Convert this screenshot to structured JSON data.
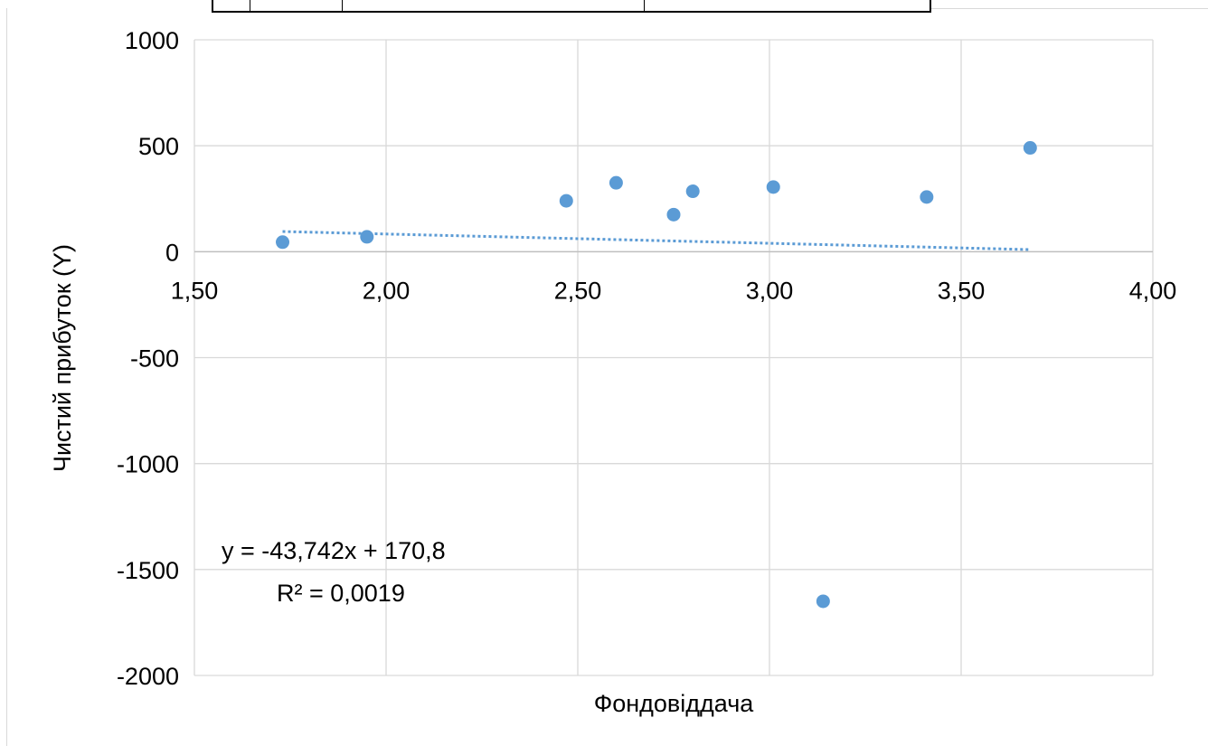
{
  "chart_data": {
    "type": "scatter",
    "title": "",
    "xlabel": "Фондовіддача",
    "ylabel": "Чистий прибуток (Y)",
    "xlim": [
      1.5,
      4.0
    ],
    "ylim": [
      -2000,
      1000
    ],
    "x_ticks": [
      "1,50",
      "2,00",
      "2,50",
      "3,00",
      "3,50",
      "4,00"
    ],
    "y_ticks": [
      "1000",
      "500",
      "0",
      "-500",
      "-1000",
      "-1500",
      "-2000"
    ],
    "grid": true,
    "legend": "none",
    "points": [
      {
        "x": 1.73,
        "y": 45
      },
      {
        "x": 1.95,
        "y": 70
      },
      {
        "x": 2.47,
        "y": 240
      },
      {
        "x": 2.6,
        "y": 325
      },
      {
        "x": 2.75,
        "y": 175
      },
      {
        "x": 2.8,
        "y": 285
      },
      {
        "x": 3.01,
        "y": 305
      },
      {
        "x": 3.14,
        "y": -1650
      },
      {
        "x": 3.41,
        "y": 258
      },
      {
        "x": 3.68,
        "y": 490
      }
    ],
    "trendline": {
      "type": "linear",
      "slope": -43.742,
      "intercept": 170.8,
      "x_range": [
        1.73,
        3.68
      ],
      "equation_label": "y = -43,742x + 170,8",
      "r2_label": "R² = 0,0019"
    },
    "colors": {
      "marker": "#5b9bd5",
      "trendline": "#5b9bd5",
      "grid": "#d9d9d9",
      "axis": "#bfbfbf"
    }
  }
}
